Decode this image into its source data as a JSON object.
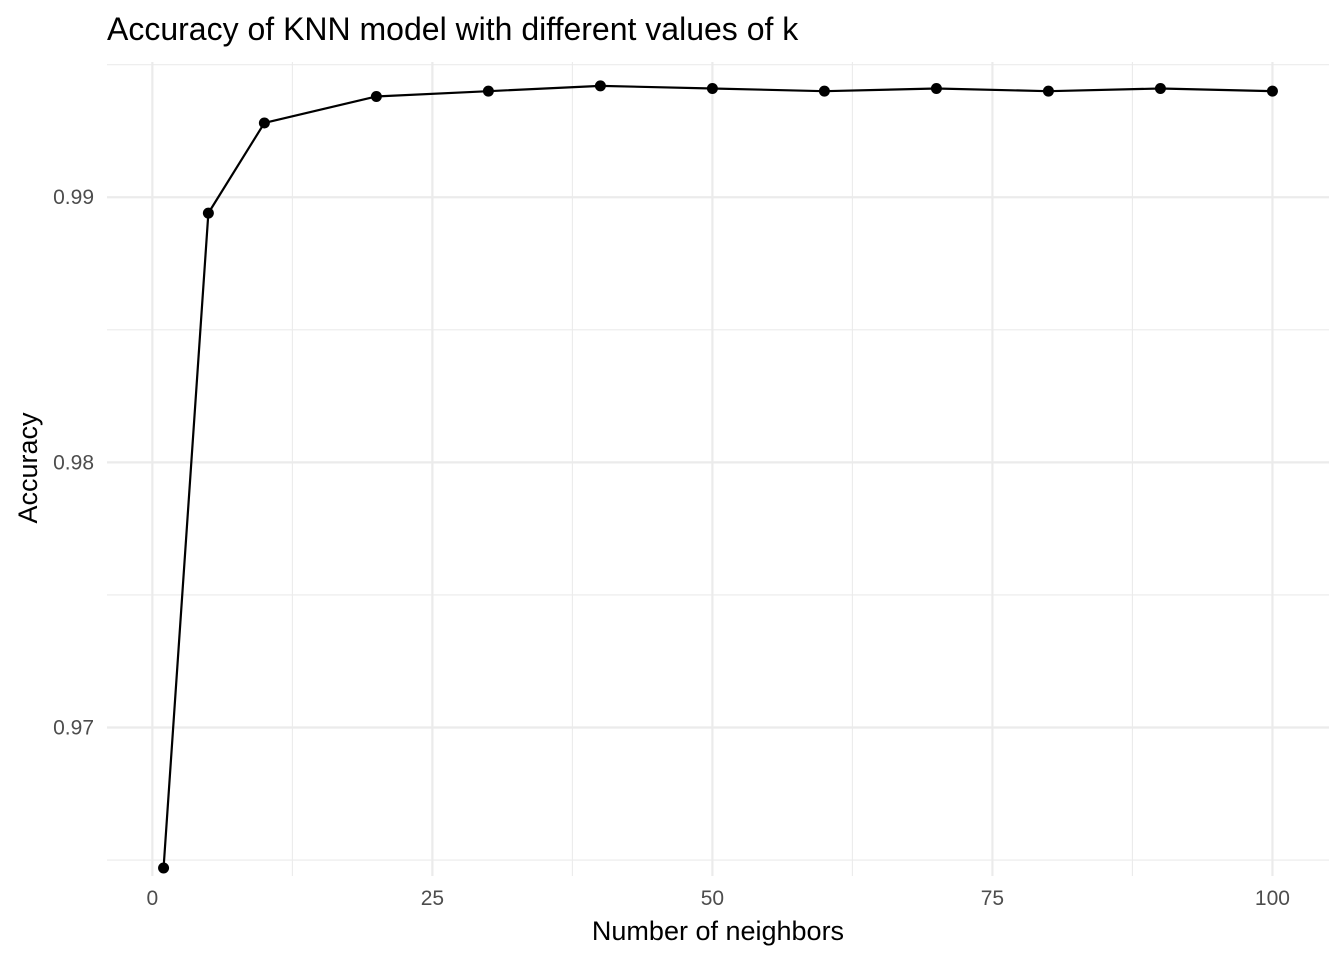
{
  "chart_data": {
    "type": "line",
    "title": "Accuracy of KNN model with different values of k",
    "xlabel": "Number of neighbors",
    "ylabel": "Accuracy",
    "xlim": [
      -4.05,
      105.05
    ],
    "ylim": [
      0.9644,
      0.9951
    ],
    "x_ticks": [
      0,
      25,
      50,
      75,
      100
    ],
    "x_tick_labels": [
      "0",
      "25",
      "50",
      "75",
      "100"
    ],
    "x_minor_ticks": [
      12.5,
      37.5,
      62.5,
      87.5
    ],
    "y_ticks": [
      0.97,
      0.98,
      0.99
    ],
    "y_tick_labels": [
      "0.97",
      "0.98",
      "0.99"
    ],
    "y_minor_ticks": [
      0.965,
      0.975,
      0.985,
      0.995
    ],
    "grid": true,
    "legend": "none",
    "line_color": "#000000",
    "series": [
      {
        "x": [
          1,
          5,
          10,
          20,
          30,
          40,
          50,
          60,
          70,
          80,
          90,
          100
        ],
        "values": [
          0.9647,
          0.9894,
          0.9928,
          0.9938,
          0.994,
          0.9942,
          0.9941,
          0.994,
          0.9941,
          0.994,
          0.9941,
          0.994
        ]
      }
    ]
  }
}
